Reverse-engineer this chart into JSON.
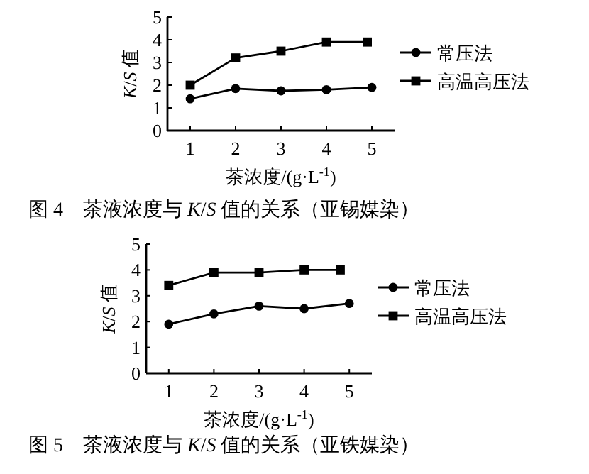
{
  "chart_data": [
    {
      "type": "line",
      "title": "图 4　茶液浓度与 *K*/*S* 值的关系（亚锡媒染）",
      "xlabel": "茶浓度/(g·L$^{-1}$)",
      "ylabel": "*K*/*S* 值",
      "xlim": [
        0.5,
        5.5
      ],
      "xticks": [
        1,
        2,
        3,
        4,
        5
      ],
      "ylim": [
        0,
        5
      ],
      "yticks": [
        0,
        1,
        2,
        3,
        4,
        5
      ],
      "legend": "right",
      "series": [
        {
          "name": "常压法",
          "color": "#000000",
          "marker": "circle",
          "x": [
            1,
            2,
            3,
            4,
            5
          ],
          "values": [
            1.4,
            1.85,
            1.75,
            1.8,
            1.9
          ]
        },
        {
          "name": "高温高压法",
          "color": "#000000",
          "marker": "square",
          "x": [
            1,
            2,
            3,
            4,
            4.9
          ],
          "values": [
            2.0,
            3.2,
            3.5,
            3.9,
            3.9
          ]
        }
      ]
    },
    {
      "type": "line",
      "title": "图 5　茶液浓度与 *K*/*S* 值的关系（亚铁媒染）",
      "xlabel": "茶浓度/(g·L$^{-1}$)",
      "ylabel": "*K*/*S* 值",
      "xlim": [
        0.5,
        5.5
      ],
      "xticks": [
        1,
        2,
        3,
        4,
        5
      ],
      "ylim": [
        0,
        5
      ],
      "yticks": [
        0,
        1,
        2,
        3,
        4,
        5
      ],
      "legend": "right",
      "series": [
        {
          "name": "常压法",
          "color": "#000000",
          "marker": "circle",
          "x": [
            1,
            2,
            3,
            4,
            5
          ],
          "values": [
            1.9,
            2.3,
            2.6,
            2.5,
            2.7
          ]
        },
        {
          "name": "高温高压法",
          "color": "#000000",
          "marker": "square",
          "x": [
            1,
            2,
            3,
            4,
            4.8
          ],
          "values": [
            3.4,
            3.9,
            3.9,
            4.0,
            4.0
          ]
        }
      ]
    }
  ]
}
